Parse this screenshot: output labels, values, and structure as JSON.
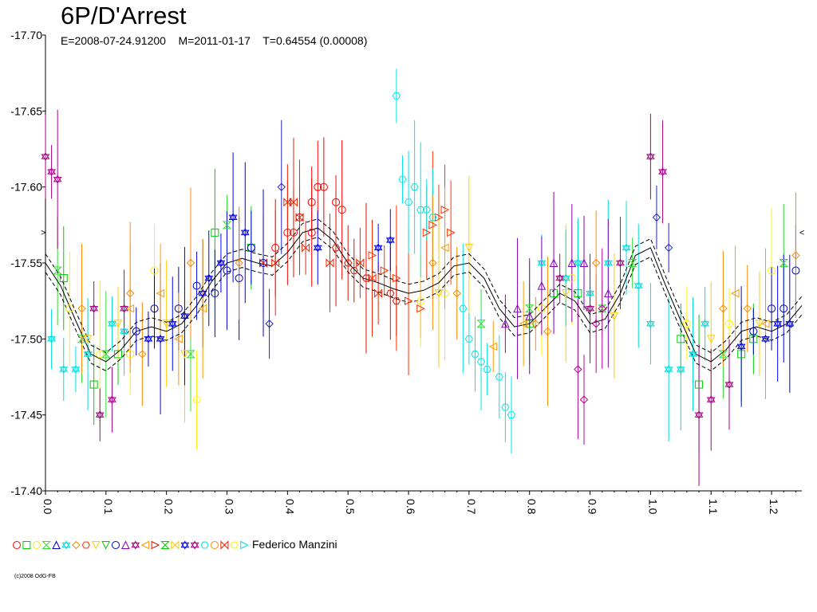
{
  "title": "6P/D'Arrest",
  "subtitle": "E=2008-07-24.91200    M=2011-01-17    T=0.64554 (0.00008)",
  "legend_author": "Federico Manzini",
  "credit": "(c)2008 OdG-FB",
  "marker_left": ">",
  "marker_right": "<",
  "colors": {
    "red": "#ff0000",
    "green": "#00cc00",
    "yellow": "#ffee00",
    "blue": "#0000cc",
    "magenta": "#aa0088",
    "cyan": "#00e5e5",
    "orange": "#ff8800",
    "purple": "#8800bb",
    "lime": "#33dd33",
    "redorange": "#ee2200"
  },
  "chart_data": {
    "type": "scatter",
    "title": "6P/D'Arrest",
    "xlim": [
      0.0,
      1.25
    ],
    "ylim": [
      -17.4,
      -17.7
    ],
    "y_axis_inverted": true,
    "x_ticks": [
      0.0,
      0.1,
      0.2,
      0.3,
      0.4,
      0.5,
      0.6,
      0.7,
      0.8,
      0.9,
      1.0,
      1.1,
      1.2
    ],
    "x_tick_labels": [
      "0.0",
      "0.1",
      "0.2",
      "0.3",
      "0.4",
      "0.5",
      "0.6",
      "0.7",
      "0.8",
      "0.9",
      "1.0",
      "1.1",
      "1.2"
    ],
    "y_ticks": [
      -17.7,
      -17.65,
      -17.6,
      -17.55,
      -17.5,
      -17.45,
      -17.4
    ],
    "y_tick_labels": [
      "-17.70",
      "-17.65",
      "-17.60",
      "-17.55",
      "-17.50",
      "-17.45",
      "-17.40"
    ],
    "period_days": 0.64554,
    "period_uncertainty": 8e-05,
    "fit_curve": [
      [
        0.0,
        -17.55
      ],
      [
        0.025,
        -17.535
      ],
      [
        0.05,
        -17.512
      ],
      [
        0.075,
        -17.49
      ],
      [
        0.1,
        -17.485
      ],
      [
        0.125,
        -17.493
      ],
      [
        0.15,
        -17.505
      ],
      [
        0.175,
        -17.508
      ],
      [
        0.2,
        -17.505
      ],
      [
        0.225,
        -17.51
      ],
      [
        0.25,
        -17.522
      ],
      [
        0.275,
        -17.538
      ],
      [
        0.3,
        -17.55
      ],
      [
        0.325,
        -17.553
      ],
      [
        0.35,
        -17.55
      ],
      [
        0.375,
        -17.548
      ],
      [
        0.4,
        -17.557
      ],
      [
        0.425,
        -17.57
      ],
      [
        0.45,
        -17.573
      ],
      [
        0.475,
        -17.565
      ],
      [
        0.5,
        -17.55
      ],
      [
        0.525,
        -17.54
      ],
      [
        0.55,
        -17.537
      ],
      [
        0.575,
        -17.533
      ],
      [
        0.6,
        -17.53
      ],
      [
        0.625,
        -17.532
      ],
      [
        0.65,
        -17.537
      ],
      [
        0.675,
        -17.548
      ],
      [
        0.7,
        -17.55
      ],
      [
        0.725,
        -17.54
      ],
      [
        0.75,
        -17.52
      ],
      [
        0.775,
        -17.508
      ],
      [
        0.8,
        -17.51
      ],
      [
        0.825,
        -17.52
      ],
      [
        0.85,
        -17.53
      ],
      [
        0.875,
        -17.525
      ],
      [
        0.9,
        -17.51
      ],
      [
        0.925,
        -17.513
      ],
      [
        0.95,
        -17.53
      ],
      [
        0.975,
        -17.555
      ],
      [
        1.0,
        -17.56
      ],
      [
        1.025,
        -17.535
      ],
      [
        1.05,
        -17.512
      ],
      [
        1.075,
        -17.49
      ],
      [
        1.1,
        -17.485
      ],
      [
        1.125,
        -17.493
      ],
      [
        1.15,
        -17.505
      ],
      [
        1.175,
        -17.508
      ],
      [
        1.2,
        -17.505
      ],
      [
        1.225,
        -17.51
      ],
      [
        1.25,
        -17.522
      ]
    ],
    "fit_band_offset": 0.006,
    "series": [
      {
        "name": "",
        "color": "#ff0000",
        "marker": "circle",
        "points": [
          [
            0.38,
            -17.56
          ],
          [
            0.4,
            -17.57
          ],
          [
            0.42,
            -17.58
          ],
          [
            0.44,
            -17.59
          ],
          [
            0.45,
            -17.6
          ],
          [
            0.46,
            -17.6
          ],
          [
            0.48,
            -17.59
          ],
          [
            0.49,
            -17.585
          ],
          [
            0.44,
            -17.57
          ],
          [
            0.41,
            -17.57
          ]
        ]
      },
      {
        "name": "",
        "color": "#ee2200",
        "marker": "bowtie",
        "points": [
          [
            0.4,
            -17.59
          ],
          [
            0.41,
            -17.59
          ],
          [
            0.42,
            -17.58
          ],
          [
            0.43,
            -17.56
          ],
          [
            0.47,
            -17.55
          ],
          [
            0.52,
            -17.55
          ],
          [
            0.54,
            -17.54
          ],
          [
            0.55,
            -17.53
          ],
          [
            0.38,
            -17.55
          ],
          [
            0.36,
            -17.55
          ]
        ]
      },
      {
        "name": "",
        "color": "#ff3300",
        "marker": "triangle-right",
        "points": [
          [
            0.54,
            -17.555
          ],
          [
            0.56,
            -17.545
          ],
          [
            0.58,
            -17.54
          ],
          [
            0.6,
            -17.525
          ],
          [
            0.62,
            -17.52
          ],
          [
            0.63,
            -17.57
          ],
          [
            0.64,
            -17.575
          ],
          [
            0.65,
            -17.58
          ],
          [
            0.66,
            -17.585
          ],
          [
            0.67,
            -17.57
          ]
        ]
      },
      {
        "name": "",
        "color": "#dd1100",
        "marker": "hexagon",
        "points": [
          [
            0.48,
            -17.56
          ],
          [
            0.5,
            -17.55
          ],
          [
            0.51,
            -17.545
          ],
          [
            0.53,
            -17.54
          ],
          [
            0.57,
            -17.53
          ],
          [
            0.58,
            -17.525
          ]
        ]
      },
      {
        "name": "",
        "color": "#00cc00",
        "marker": "square",
        "points": [
          [
            0.03,
            -17.54
          ],
          [
            0.08,
            -17.47
          ],
          [
            0.12,
            -17.49
          ],
          [
            0.28,
            -17.57
          ],
          [
            0.34,
            -17.56
          ],
          [
            0.8,
            -17.51
          ],
          [
            0.84,
            -17.53
          ],
          [
            0.88,
            -17.53
          ],
          [
            1.05,
            -17.5
          ],
          [
            1.08,
            -17.47
          ],
          [
            1.15,
            -17.49
          ],
          [
            1.17,
            -17.5
          ]
        ]
      },
      {
        "name": "",
        "color": "#33dd33",
        "marker": "hourglass",
        "points": [
          [
            0.02,
            -17.545
          ],
          [
            0.06,
            -17.5
          ],
          [
            0.1,
            -17.49
          ],
          [
            0.24,
            -17.49
          ],
          [
            0.3,
            -17.575
          ],
          [
            0.72,
            -17.51
          ],
          [
            0.8,
            -17.52
          ],
          [
            0.92,
            -17.52
          ],
          [
            0.97,
            -17.55
          ],
          [
            1.12,
            -17.49
          ],
          [
            1.22,
            -17.55
          ]
        ]
      },
      {
        "name": "",
        "color": "#ffee00",
        "marker": "circle",
        "points": [
          [
            0.04,
            -17.52
          ],
          [
            0.09,
            -17.49
          ],
          [
            0.14,
            -17.49
          ],
          [
            0.18,
            -17.545
          ],
          [
            0.25,
            -17.46
          ],
          [
            0.62,
            -17.525
          ],
          [
            0.66,
            -17.53
          ],
          [
            0.82,
            -17.52
          ],
          [
            0.87,
            -17.54
          ],
          [
            1.06,
            -17.51
          ],
          [
            1.13,
            -17.51
          ],
          [
            1.2,
            -17.545
          ]
        ]
      },
      {
        "name": "",
        "color": "#ffcc00",
        "marker": "triangle-down",
        "points": [
          [
            0.07,
            -17.5
          ],
          [
            0.12,
            -17.51
          ],
          [
            0.2,
            -17.51
          ],
          [
            0.23,
            -17.49
          ],
          [
            0.65,
            -17.53
          ],
          [
            0.7,
            -17.56
          ],
          [
            0.86,
            -17.53
          ],
          [
            0.94,
            -17.515
          ],
          [
            1.1,
            -17.5
          ],
          [
            1.18,
            -17.51
          ]
        ]
      },
      {
        "name": "",
        "color": "#0000cc",
        "marker": "circle",
        "points": [
          [
            0.15,
            -17.505
          ],
          [
            0.18,
            -17.52
          ],
          [
            0.22,
            -17.52
          ],
          [
            0.25,
            -17.535
          ],
          [
            0.28,
            -17.53
          ],
          [
            0.3,
            -17.545
          ],
          [
            0.32,
            -17.54
          ],
          [
            0.34,
            -17.56
          ],
          [
            0.36,
            -17.55
          ],
          [
            1.17,
            -17.505
          ],
          [
            1.2,
            -17.52
          ],
          [
            1.22,
            -17.52
          ],
          [
            1.24,
            -17.545
          ]
        ]
      },
      {
        "name": "",
        "color": "#0000ee",
        "marker": "star",
        "points": [
          [
            0.17,
            -17.5
          ],
          [
            0.19,
            -17.5
          ],
          [
            0.21,
            -17.51
          ],
          [
            0.23,
            -17.515
          ],
          [
            0.26,
            -17.53
          ],
          [
            0.27,
            -17.54
          ],
          [
            0.29,
            -17.55
          ],
          [
            0.31,
            -17.58
          ],
          [
            0.33,
            -17.57
          ],
          [
            0.45,
            -17.56
          ],
          [
            0.55,
            -17.56
          ],
          [
            0.57,
            -17.565
          ],
          [
            1.15,
            -17.495
          ],
          [
            1.19,
            -17.5
          ],
          [
            1.21,
            -17.51
          ],
          [
            1.23,
            -17.51
          ]
        ]
      },
      {
        "name": "",
        "color": "#2222bb",
        "marker": "diamond",
        "points": [
          [
            0.37,
            -17.51
          ],
          [
            0.39,
            -17.6
          ],
          [
            1.01,
            -17.58
          ],
          [
            1.03,
            -17.56
          ]
        ]
      },
      {
        "name": "",
        "color": "#00e5e5",
        "marker": "hexagon",
        "points": [
          [
            0.58,
            -17.66
          ],
          [
            0.59,
            -17.605
          ],
          [
            0.6,
            -17.59
          ],
          [
            0.61,
            -17.6
          ],
          [
            0.62,
            -17.585
          ],
          [
            0.63,
            -17.585
          ],
          [
            0.64,
            -17.58
          ],
          [
            0.7,
            -17.5
          ],
          [
            0.71,
            -17.49
          ],
          [
            0.72,
            -17.485
          ],
          [
            0.73,
            -17.48
          ],
          [
            0.75,
            -17.475
          ],
          [
            0.76,
            -17.455
          ],
          [
            0.77,
            -17.45
          ],
          [
            0.69,
            -17.52
          ]
        ]
      },
      {
        "name": "",
        "color": "#00dddd",
        "marker": "star",
        "points": [
          [
            0.01,
            -17.5
          ],
          [
            0.03,
            -17.48
          ],
          [
            0.05,
            -17.48
          ],
          [
            0.07,
            -17.49
          ],
          [
            0.11,
            -17.51
          ],
          [
            0.13,
            -17.505
          ],
          [
            0.82,
            -17.55
          ],
          [
            0.86,
            -17.54
          ],
          [
            0.88,
            -17.55
          ],
          [
            0.9,
            -17.53
          ],
          [
            0.93,
            -17.55
          ],
          [
            0.96,
            -17.56
          ],
          [
            0.98,
            -17.535
          ],
          [
            1.0,
            -17.51
          ],
          [
            1.03,
            -17.48
          ],
          [
            1.05,
            -17.48
          ],
          [
            1.07,
            -17.49
          ],
          [
            1.09,
            -17.51
          ]
        ]
      },
      {
        "name": "",
        "color": "#aa0088",
        "marker": "star",
        "points": [
          [
            0.0,
            -17.62
          ],
          [
            0.01,
            -17.61
          ],
          [
            0.02,
            -17.605
          ],
          [
            0.08,
            -17.52
          ],
          [
            0.09,
            -17.45
          ],
          [
            0.11,
            -17.46
          ],
          [
            0.13,
            -17.52
          ],
          [
            0.85,
            -17.54
          ],
          [
            0.9,
            -17.52
          ],
          [
            0.95,
            -17.55
          ],
          [
            1.0,
            -17.62
          ],
          [
            1.02,
            -17.61
          ],
          [
            1.08,
            -17.45
          ],
          [
            1.1,
            -17.46
          ],
          [
            1.13,
            -17.47
          ]
        ]
      },
      {
        "name": "",
        "color": "#8800bb",
        "marker": "triangle",
        "points": [
          [
            0.76,
            -17.51
          ],
          [
            0.78,
            -17.52
          ],
          [
            0.8,
            -17.515
          ],
          [
            0.82,
            -17.535
          ],
          [
            0.84,
            -17.55
          ],
          [
            0.87,
            -17.55
          ],
          [
            0.89,
            -17.55
          ],
          [
            0.93,
            -17.53
          ]
        ]
      },
      {
        "name": "",
        "color": "#bb0099",
        "marker": "diamond",
        "points": [
          [
            0.88,
            -17.48
          ],
          [
            0.89,
            -17.46
          ],
          [
            0.91,
            -17.51
          ],
          [
            0.92,
            -17.52
          ]
        ]
      },
      {
        "name": "",
        "color": "#ff8800",
        "marker": "diamond",
        "points": [
          [
            0.06,
            -17.52
          ],
          [
            0.14,
            -17.53
          ],
          [
            0.16,
            -17.49
          ],
          [
            0.24,
            -17.55
          ],
          [
            0.32,
            -17.55
          ],
          [
            0.64,
            -17.55
          ],
          [
            0.68,
            -17.53
          ],
          [
            0.81,
            -17.51
          ],
          [
            0.83,
            -17.505
          ],
          [
            0.91,
            -17.55
          ],
          [
            1.12,
            -17.52
          ],
          [
            1.16,
            -17.52
          ],
          [
            1.24,
            -17.555
          ]
        ]
      },
      {
        "name": "",
        "color": "#ff9900",
        "marker": "triangle-left",
        "points": [
          [
            0.14,
            -17.52
          ],
          [
            0.19,
            -17.53
          ],
          [
            0.22,
            -17.5
          ],
          [
            0.26,
            -17.52
          ],
          [
            0.66,
            -17.56
          ],
          [
            0.74,
            -17.495
          ],
          [
            0.79,
            -17.51
          ],
          [
            1.14,
            -17.53
          ],
          [
            1.19,
            -17.51
          ]
        ]
      }
    ]
  }
}
